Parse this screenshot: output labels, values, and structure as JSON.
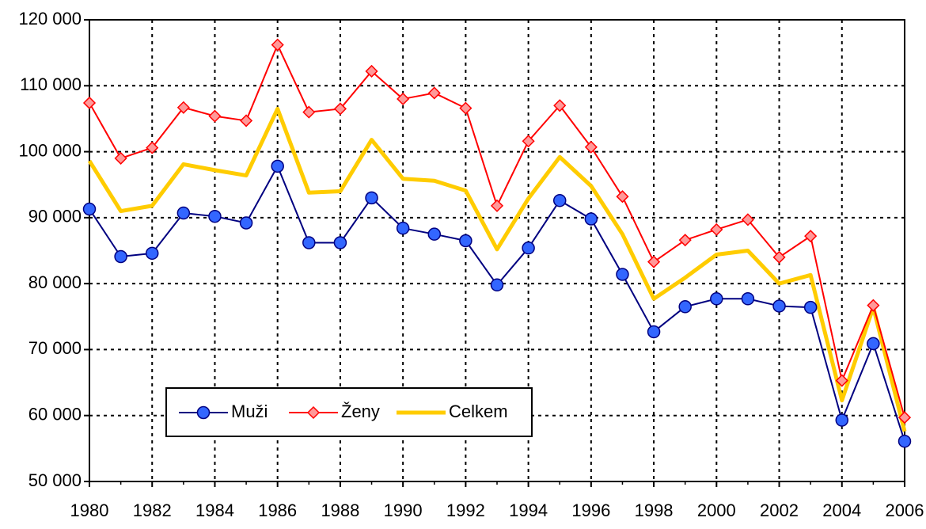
{
  "chart_data": {
    "type": "line",
    "x": [
      1980,
      1981,
      1982,
      1983,
      1984,
      1985,
      1986,
      1987,
      1988,
      1989,
      1990,
      1991,
      1992,
      1993,
      1994,
      1995,
      1996,
      1997,
      1998,
      1999,
      2000,
      2001,
      2002,
      2003,
      2004,
      2005,
      2006
    ],
    "series": [
      {
        "name": "Muži",
        "color": "#000080",
        "marker": "circle",
        "marker_color": "#3366ff",
        "values": [
          91300,
          84100,
          84600,
          90700,
          90200,
          89200,
          97800,
          86200,
          86200,
          93000,
          88400,
          87500,
          86500,
          79800,
          85400,
          92600,
          89800,
          81400,
          72700,
          76500,
          77700,
          77700,
          76600,
          76400,
          59300,
          70900,
          56100
        ]
      },
      {
        "name": "Ženy",
        "color": "#ff0000",
        "marker": "diamond",
        "marker_color": "#ff9999",
        "values": [
          107400,
          99000,
          100600,
          106700,
          105400,
          104700,
          116200,
          106000,
          106500,
          112200,
          108000,
          108900,
          106600,
          91800,
          101600,
          107000,
          100700,
          93200,
          83300,
          86600,
          88200,
          89700,
          84000,
          87200,
          65300,
          76700,
          59700
        ]
      },
      {
        "name": "Celkem",
        "color": "#ffcc00",
        "marker": "none",
        "values": [
          98600,
          91000,
          91800,
          98100,
          97200,
          96400,
          106500,
          93800,
          94000,
          101800,
          95900,
          95600,
          94100,
          85200,
          92900,
          99200,
          94800,
          87500,
          77700,
          80900,
          84400,
          85000,
          80000,
          81300,
          62300,
          76400,
          57600
        ]
      }
    ],
    "xlim": [
      1980,
      2006
    ],
    "xticks": [
      1980,
      1982,
      1984,
      1986,
      1988,
      1990,
      1992,
      1994,
      1996,
      1998,
      2000,
      2002,
      2004,
      2006
    ],
    "ylim": [
      50000,
      120000
    ],
    "yticks": [
      {
        "value": 50000,
        "label": "50 000"
      },
      {
        "value": 60000,
        "label": "60 000"
      },
      {
        "value": 70000,
        "label": "70 000"
      },
      {
        "value": 80000,
        "label": "80 000"
      },
      {
        "value": 90000,
        "label": "90 000"
      },
      {
        "value": 100000,
        "label": "100 000"
      },
      {
        "value": 110000,
        "label": "110 000"
      },
      {
        "value": 120000,
        "label": "120 000"
      }
    ],
    "grid": true,
    "legend": "lower-left"
  }
}
